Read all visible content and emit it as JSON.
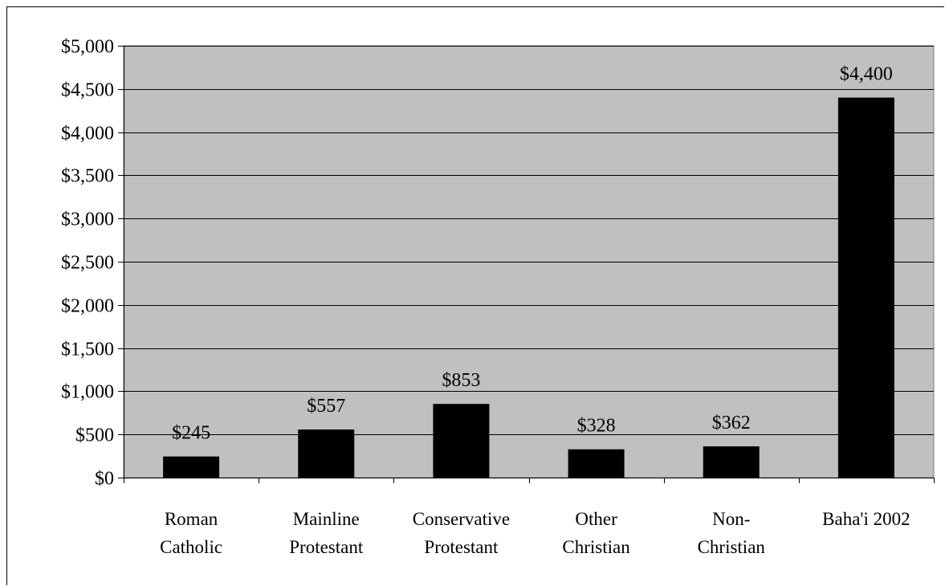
{
  "chart_data": {
    "type": "bar",
    "categories": [
      [
        "Roman",
        "Catholic"
      ],
      [
        "Mainline",
        "Protestant"
      ],
      [
        "Conservative",
        "Protestant"
      ],
      [
        "Other",
        "Christian"
      ],
      [
        "Non-",
        "Christian"
      ],
      [
        "Baha'i 2002"
      ]
    ],
    "values": [
      245,
      557,
      853,
      328,
      362,
      4400
    ],
    "data_labels": [
      "$245",
      "$557",
      "$853",
      "$328",
      "$362",
      "$4,400"
    ],
    "ylim": [
      0,
      5000
    ],
    "y_ticks": [
      0,
      500,
      1000,
      1500,
      2000,
      2500,
      3000,
      3500,
      4000,
      4500,
      5000
    ],
    "y_tick_labels": [
      "$0",
      "$500",
      "$1,000",
      "$1,500",
      "$2,000",
      "$2,500",
      "$3,000",
      "$3,500",
      "$4,000",
      "$4,500",
      "$5,000"
    ],
    "grid": true,
    "legend": "none",
    "title": "",
    "xlabel": "",
    "ylabel": "",
    "colors": {
      "plot_bg": "#c0c0c0",
      "bar": "#000000",
      "gridline": "#000000"
    }
  }
}
